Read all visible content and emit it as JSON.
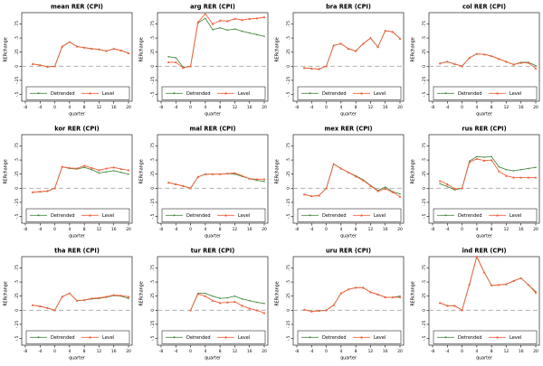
{
  "figure": {
    "rows": 3,
    "cols": 4,
    "background": "#ffffff"
  },
  "chart_data": {
    "type": "line",
    "xlabel": "quarter",
    "ylabel": "RERchange",
    "xticks": [
      -8,
      -4,
      0,
      4,
      8,
      12,
      16,
      20
    ],
    "yticks": [
      0.75,
      0.5,
      0.25,
      0,
      -0.25,
      -0.5
    ],
    "ytick_labels": [
      ".75",
      ".5",
      ".25",
      "0",
      "-.25",
      "-.5"
    ],
    "xlim": [
      -8,
      20
    ],
    "ylim": [
      -0.62,
      0.95
    ],
    "grid": false,
    "legend_position": "bottom-inside-box",
    "legend": [
      "Detrended",
      "Level"
    ],
    "colors": {
      "detrended": "#4a8c44",
      "level": "#f4613e",
      "zero_line": "#a6a6a6",
      "axis": "#000000"
    },
    "charts": [
      {
        "id": "mean",
        "title": "mean RER (CPI)",
        "x": [
          -6,
          -4,
          -2,
          0,
          2,
          4,
          6,
          8,
          10,
          12,
          14,
          16,
          18,
          20
        ],
        "detrended": [
          0.04,
          0.02,
          -0.01,
          0,
          0.35,
          0.43,
          0.35,
          0.33,
          0.31,
          0.3,
          0.27,
          0.31,
          0.28,
          0.23
        ],
        "level": [
          0.04,
          0.02,
          -0.01,
          0,
          0.35,
          0.43,
          0.35,
          0.33,
          0.31,
          0.3,
          0.27,
          0.31,
          0.28,
          0.23
        ]
      },
      {
        "id": "arg",
        "title": "arg RER (CPI)",
        "x": [
          -6,
          -4,
          -2,
          0,
          2,
          4,
          6,
          8,
          10,
          12,
          14,
          16,
          18,
          20
        ],
        "detrended": [
          0.17,
          0.15,
          -0.02,
          0,
          0.77,
          0.85,
          0.65,
          0.68,
          0.64,
          0.66,
          0.62,
          0.59,
          0.56,
          0.53
        ],
        "level": [
          0.07,
          0.07,
          -0.03,
          0,
          0.78,
          0.93,
          0.75,
          0.81,
          0.8,
          0.84,
          0.82,
          0.84,
          0.85,
          0.87
        ]
      },
      {
        "id": "bra",
        "title": "bra RER (CPI)",
        "x": [
          -6,
          -4,
          -2,
          0,
          2,
          4,
          6,
          8,
          10,
          12,
          14,
          16,
          18,
          20
        ],
        "detrended": [
          -0.03,
          -0.04,
          -0.05,
          0,
          0.37,
          0.4,
          0.31,
          0.27,
          0.4,
          0.5,
          0.34,
          0.63,
          0.61,
          0.49
        ],
        "level": [
          -0.03,
          -0.04,
          -0.05,
          0,
          0.37,
          0.4,
          0.31,
          0.27,
          0.4,
          0.5,
          0.34,
          0.63,
          0.61,
          0.49
        ]
      },
      {
        "id": "col",
        "title": "col RER (CPI)",
        "x": [
          -6,
          -4,
          -2,
          0,
          2,
          4,
          6,
          8,
          10,
          12,
          14,
          16,
          18,
          20
        ],
        "detrended": [
          0.05,
          0.08,
          0.04,
          0,
          0.15,
          0.22,
          0.21,
          0.18,
          0.13,
          0.08,
          0.03,
          0.07,
          0.07,
          0.01
        ],
        "level": [
          0.05,
          0.08,
          0.04,
          0,
          0.15,
          0.22,
          0.21,
          0.18,
          0.13,
          0.08,
          0.03,
          0.06,
          0.06,
          -0.04
        ]
      },
      {
        "id": "kor",
        "title": "kor RER (CPI)",
        "x": [
          -6,
          -4,
          -2,
          0,
          2,
          4,
          6,
          8,
          10,
          12,
          14,
          16,
          18,
          20
        ],
        "detrended": [
          -0.07,
          -0.06,
          -0.05,
          0,
          0.38,
          0.35,
          0.34,
          0.37,
          0.33,
          0.27,
          0.29,
          0.31,
          0.28,
          0.25
        ],
        "level": [
          -0.07,
          -0.06,
          -0.05,
          0,
          0.38,
          0.36,
          0.35,
          0.4,
          0.36,
          0.32,
          0.35,
          0.37,
          0.34,
          0.32
        ]
      },
      {
        "id": "mal",
        "title": "mal RER (CPI)",
        "x": [
          -6,
          -4,
          -2,
          0,
          2,
          4,
          6,
          8,
          10,
          12,
          14,
          16,
          18,
          20
        ],
        "detrended": [
          0.1,
          0.07,
          0.04,
          0,
          0.2,
          0.25,
          0.25,
          0.25,
          0.26,
          0.25,
          0.21,
          0.17,
          0.14,
          0.12
        ],
        "level": [
          0.1,
          0.07,
          0.04,
          0,
          0.2,
          0.25,
          0.25,
          0.25,
          0.26,
          0.27,
          0.22,
          0.17,
          0.16,
          0.16
        ]
      },
      {
        "id": "mex",
        "title": "mex RER (CPI)",
        "x": [
          -6,
          -4,
          -2,
          0,
          2,
          4,
          6,
          8,
          10,
          12,
          14,
          16,
          18,
          20
        ],
        "detrended": [
          -0.11,
          -0.14,
          -0.13,
          0,
          0.43,
          0.35,
          0.28,
          0.22,
          0.15,
          0.05,
          -0.04,
          0.02,
          -0.06,
          -0.1
        ],
        "level": [
          -0.11,
          -0.14,
          -0.13,
          0,
          0.43,
          0.35,
          0.28,
          0.21,
          0.14,
          0.04,
          -0.05,
          -0.01,
          -0.07,
          -0.15
        ]
      },
      {
        "id": "rus",
        "title": "rus RER (CPI)",
        "x": [
          -6,
          -4,
          -2,
          0,
          2,
          4,
          6,
          8,
          10,
          12,
          14,
          16,
          18,
          20
        ],
        "detrended": [
          0.08,
          0.03,
          -0.03,
          0,
          0.48,
          0.56,
          0.55,
          0.56,
          0.38,
          0.33,
          0.31,
          0.33,
          0.35,
          0.37
        ],
        "level": [
          0.13,
          0.07,
          -0.01,
          0,
          0.46,
          0.52,
          0.49,
          0.5,
          0.3,
          0.22,
          0.19,
          0.19,
          0.19,
          0.19
        ]
      },
      {
        "id": "tha",
        "title": "tha RER (CPI)",
        "x": [
          -6,
          -4,
          -2,
          0,
          2,
          4,
          6,
          8,
          10,
          12,
          14,
          16,
          18,
          20
        ],
        "detrended": [
          0.09,
          0.07,
          0.04,
          0,
          0.24,
          0.3,
          0.17,
          0.18,
          0.2,
          0.21,
          0.23,
          0.26,
          0.25,
          0.21
        ],
        "level": [
          0.09,
          0.07,
          0.04,
          0,
          0.24,
          0.3,
          0.17,
          0.18,
          0.21,
          0.22,
          0.24,
          0.27,
          0.26,
          0.24
        ]
      },
      {
        "id": "tur",
        "title": "tur RER (CPI)",
        "x": [
          0,
          2,
          4,
          6,
          8,
          10,
          12,
          14,
          16,
          18,
          20
        ],
        "detrended": [
          0,
          0.3,
          0.3,
          0.25,
          0.21,
          0.22,
          0.25,
          0.2,
          0.17,
          0.14,
          0.12
        ],
        "level": [
          0,
          0.29,
          0.25,
          0.17,
          0.13,
          0.14,
          0.15,
          0.08,
          0.03,
          0.0,
          -0.05
        ]
      },
      {
        "id": "uru",
        "title": "uru RER (CPI)",
        "x": [
          -6,
          -4,
          -2,
          0,
          2,
          4,
          6,
          8,
          10,
          12,
          14,
          16,
          18,
          20
        ],
        "detrended": [
          0.01,
          -0.02,
          -0.01,
          0,
          0.09,
          0.3,
          0.37,
          0.4,
          0.4,
          0.32,
          0.28,
          0.23,
          0.23,
          0.25
        ],
        "level": [
          0.01,
          -0.02,
          -0.01,
          0,
          0.09,
          0.3,
          0.37,
          0.4,
          0.4,
          0.32,
          0.28,
          0.23,
          0.23,
          0.23
        ]
      },
      {
        "id": "ind",
        "title": "ind RER (CPI)",
        "x": [
          -6,
          -4,
          -2,
          0,
          2,
          4,
          6,
          8,
          10,
          12,
          14,
          16,
          18,
          20
        ],
        "detrended": [
          0.13,
          0.08,
          0.08,
          0,
          0.46,
          0.95,
          0.67,
          0.44,
          0.45,
          0.46,
          0.52,
          0.57,
          0.45,
          0.33
        ],
        "level": [
          0.13,
          0.08,
          0.08,
          0,
          0.46,
          0.95,
          0.67,
          0.44,
          0.45,
          0.46,
          0.52,
          0.57,
          0.45,
          0.31
        ]
      }
    ]
  }
}
